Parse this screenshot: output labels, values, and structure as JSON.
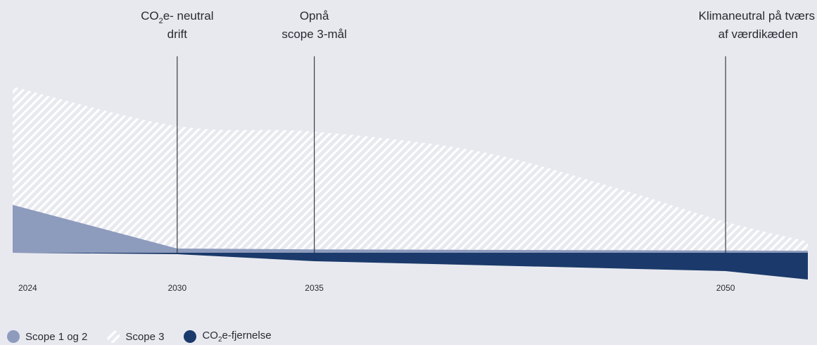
{
  "chart_data": {
    "type": "area",
    "x": [
      2024,
      2030,
      2035,
      2050,
      2053
    ],
    "xticks": [
      "2024",
      "2030",
      "2035",
      "2050"
    ],
    "xlim": [
      2024,
      2053
    ],
    "ylim": [
      -1,
      6
    ],
    "series": [
      {
        "name": "Scope 1 og 2",
        "pattern": "solid",
        "color": "#8d9bbd",
        "points": [
          [
            2024,
            1.7
          ],
          [
            2030,
            0.15
          ],
          [
            2035,
            0.12
          ],
          [
            2050,
            0.08
          ],
          [
            2053,
            0.07
          ]
        ]
      },
      {
        "name": "Scope 3",
        "pattern": "hatch",
        "color": "#ffffff",
        "points": [
          [
            2024,
            5.9
          ],
          [
            2030,
            4.5
          ],
          [
            2035,
            4.3
          ],
          [
            2041,
            3.6
          ],
          [
            2046,
            2.3
          ],
          [
            2050,
            1.1
          ],
          [
            2053,
            0.4
          ]
        ]
      },
      {
        "name": "CO₂e-fjernelse",
        "pattern": "solid",
        "color": "#1b3a6b",
        "points": [
          [
            2024,
            0
          ],
          [
            2030,
            -0.05
          ],
          [
            2035,
            -0.3
          ],
          [
            2050,
            -0.65
          ],
          [
            2053,
            -0.95
          ]
        ]
      }
    ],
    "milestones": [
      {
        "year": 2030,
        "line1_pre": "CO",
        "line1_sub": "2",
        "line1_post": "e- neutral",
        "line2": "drift"
      },
      {
        "year": 2035,
        "line1_pre": "Opnå",
        "line1_sub": "",
        "line1_post": "",
        "line2": "scope 3-mål"
      },
      {
        "year": 2050,
        "line1_pre": "Klimaneutral på tværs",
        "line1_sub": "",
        "line1_post": "",
        "line2": "af værdikæden"
      }
    ],
    "legend_position": "bottom-left",
    "grid": false
  },
  "legend": {
    "items": [
      {
        "pre": "Scope 1 og 2",
        "sub": "",
        "post": ""
      },
      {
        "pre": "Scope 3",
        "sub": "",
        "post": ""
      },
      {
        "pre": "CO",
        "sub": "2",
        "post": "e-fjernelse"
      }
    ]
  }
}
